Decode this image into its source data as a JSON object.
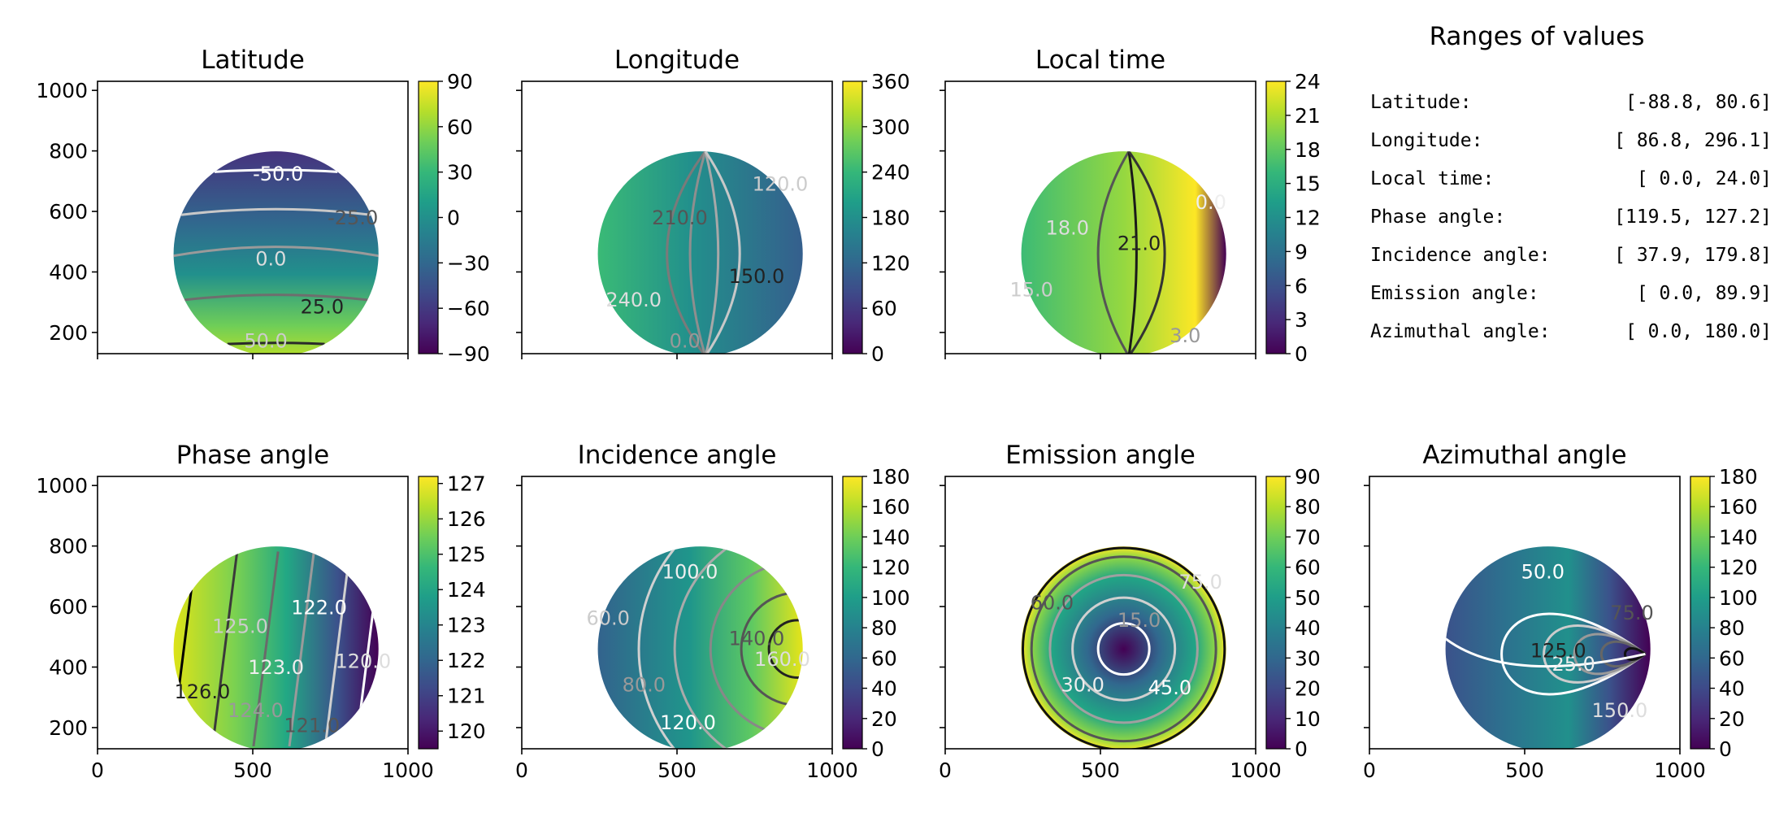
{
  "summary": {
    "title": "Ranges of values",
    "rows": [
      {
        "label": "Latitude:",
        "range": "[-88.8,  80.6]"
      },
      {
        "label": "Longitude:",
        "range": "[ 86.8, 296.1]"
      },
      {
        "label": "Local time:",
        "range": "[  0.0,  24.0]"
      },
      {
        "label": "Phase angle:",
        "range": "[119.5, 127.2]"
      },
      {
        "label": "Incidence angle:",
        "range": "[ 37.9, 179.8]"
      },
      {
        "label": "Emission angle:",
        "range": "[  0.0,  89.9]"
      },
      {
        "label": "Azimuthal angle:",
        "range": "[  0.0, 180.0]"
      }
    ]
  },
  "colors": {
    "viridis": [
      "#440154",
      "#482878",
      "#3e4a89",
      "#31688e",
      "#26828e",
      "#1f9e89",
      "#35b779",
      "#6ece58",
      "#b5de2b",
      "#fde725"
    ]
  },
  "chart_data": [
    {
      "type": "heatmap",
      "title": "Latitude",
      "xlim": [
        0,
        1000
      ],
      "ylim": [
        130,
        1030
      ],
      "yticks": [
        "1000",
        "800",
        "600",
        "400",
        "200"
      ],
      "yticks_values": [
        1000,
        800,
        600,
        400,
        200
      ],
      "xtick_values": [
        0,
        500,
        1000
      ],
      "xticklabels_shown": false,
      "disc": {
        "center": [
          575,
          460
        ],
        "radius": 330
      },
      "colorbar": {
        "min": -90,
        "max": 90,
        "ticks": [
          "90",
          "60",
          "30",
          "0",
          "−30",
          "−60",
          "−90"
        ],
        "tick_values": [
          90,
          60,
          30,
          0,
          -30,
          -60,
          -90
        ]
      },
      "contour_labels": [
        "-50.0",
        "-25.0",
        "0.0",
        "25.0",
        "50.0"
      ]
    },
    {
      "type": "heatmap",
      "title": "Longitude",
      "xlim": [
        0,
        1000
      ],
      "ylim": [
        130,
        1030
      ],
      "xtick_values": [
        0,
        500,
        1000
      ],
      "xticklabels_shown": false,
      "disc": {
        "center": [
          575,
          460
        ],
        "radius": 330
      },
      "colorbar": {
        "min": 0,
        "max": 360,
        "ticks": [
          "360",
          "300",
          "240",
          "180",
          "120",
          "60",
          "0"
        ],
        "tick_values": [
          360,
          300,
          240,
          180,
          120,
          60,
          0
        ]
      },
      "contour_labels": [
        "210.0",
        "240.0",
        "150.0",
        "120.0",
        "0.0"
      ]
    },
    {
      "type": "heatmap",
      "title": "Local time",
      "xlim": [
        0,
        1000
      ],
      "ylim": [
        130,
        1030
      ],
      "xtick_values": [
        0,
        500,
        1000
      ],
      "xticklabels_shown": false,
      "disc": {
        "center": [
          575,
          460
        ],
        "radius": 330
      },
      "colorbar": {
        "min": 0,
        "max": 24,
        "ticks": [
          "24",
          "21",
          "18",
          "15",
          "12",
          "9",
          "6",
          "3",
          "0"
        ],
        "tick_values": [
          24,
          21,
          18,
          15,
          12,
          9,
          6,
          3,
          0
        ]
      },
      "contour_labels": [
        "18.0",
        "21.0",
        "15.0",
        "3.0",
        "0.0"
      ]
    },
    {
      "type": "heatmap",
      "title": "Phase angle",
      "xlim": [
        0,
        1000
      ],
      "ylim": [
        130,
        1030
      ],
      "yticks": [
        "1000",
        "800",
        "600",
        "400",
        "200"
      ],
      "yticks_values": [
        1000,
        800,
        600,
        400,
        200
      ],
      "xticks": [
        "0",
        "500",
        "1000"
      ],
      "xtick_values": [
        0,
        500,
        1000
      ],
      "disc": {
        "center": [
          575,
          460
        ],
        "radius": 330
      },
      "colorbar": {
        "min": 119.5,
        "max": 127.2,
        "ticks": [
          "127",
          "126",
          "125",
          "124",
          "123",
          "122",
          "121",
          "120"
        ],
        "tick_values": [
          127,
          126,
          125,
          124,
          123,
          122,
          121,
          120
        ]
      },
      "contour_labels": [
        "126.0",
        "125.0",
        "124.0",
        "123.0",
        "122.0",
        "121.0",
        "120.0"
      ]
    },
    {
      "type": "heatmap",
      "title": "Incidence angle",
      "xlim": [
        0,
        1000
      ],
      "ylim": [
        130,
        1030
      ],
      "xticks": [
        "0",
        "500",
        "1000"
      ],
      "xtick_values": [
        0,
        500,
        1000
      ],
      "disc": {
        "center": [
          575,
          460
        ],
        "radius": 330
      },
      "colorbar": {
        "min": 0,
        "max": 180,
        "ticks": [
          "180",
          "160",
          "140",
          "120",
          "100",
          "80",
          "60",
          "40",
          "20",
          "0"
        ],
        "tick_values": [
          180,
          160,
          140,
          120,
          100,
          80,
          60,
          40,
          20,
          0
        ]
      },
      "contour_labels": [
        "60.0",
        "80.0",
        "100.0",
        "120.0",
        "140.0",
        "160.0"
      ]
    },
    {
      "type": "heatmap",
      "title": "Emission angle",
      "xlim": [
        0,
        1000
      ],
      "ylim": [
        130,
        1030
      ],
      "xticks": [
        "0",
        "500",
        "1000"
      ],
      "xtick_values": [
        0,
        500,
        1000
      ],
      "disc": {
        "center": [
          575,
          460
        ],
        "radius": 330
      },
      "colorbar": {
        "min": 0,
        "max": 90,
        "ticks": [
          "90",
          "80",
          "70",
          "60",
          "50",
          "40",
          "30",
          "20",
          "10",
          "0"
        ],
        "tick_values": [
          90,
          80,
          70,
          60,
          50,
          40,
          30,
          20,
          10,
          0
        ]
      },
      "contour_labels": [
        "15.0",
        "30.0",
        "45.0",
        "60.0",
        "75.0"
      ]
    },
    {
      "type": "heatmap",
      "title": "Azimuthal angle",
      "xlim": [
        0,
        1000
      ],
      "ylim": [
        130,
        1030
      ],
      "xticks": [
        "0",
        "500",
        "1000"
      ],
      "xtick_values": [
        0,
        500,
        1000
      ],
      "disc": {
        "center": [
          575,
          460
        ],
        "radius": 330
      },
      "colorbar": {
        "min": 0,
        "max": 180,
        "ticks": [
          "180",
          "160",
          "140",
          "120",
          "100",
          "80",
          "60",
          "40",
          "20",
          "0"
        ],
        "tick_values": [
          180,
          160,
          140,
          120,
          100,
          80,
          60,
          40,
          20,
          0
        ]
      },
      "contour_labels": [
        "25.0",
        "50.0",
        "75.0",
        "150.0",
        "125.0"
      ]
    }
  ]
}
